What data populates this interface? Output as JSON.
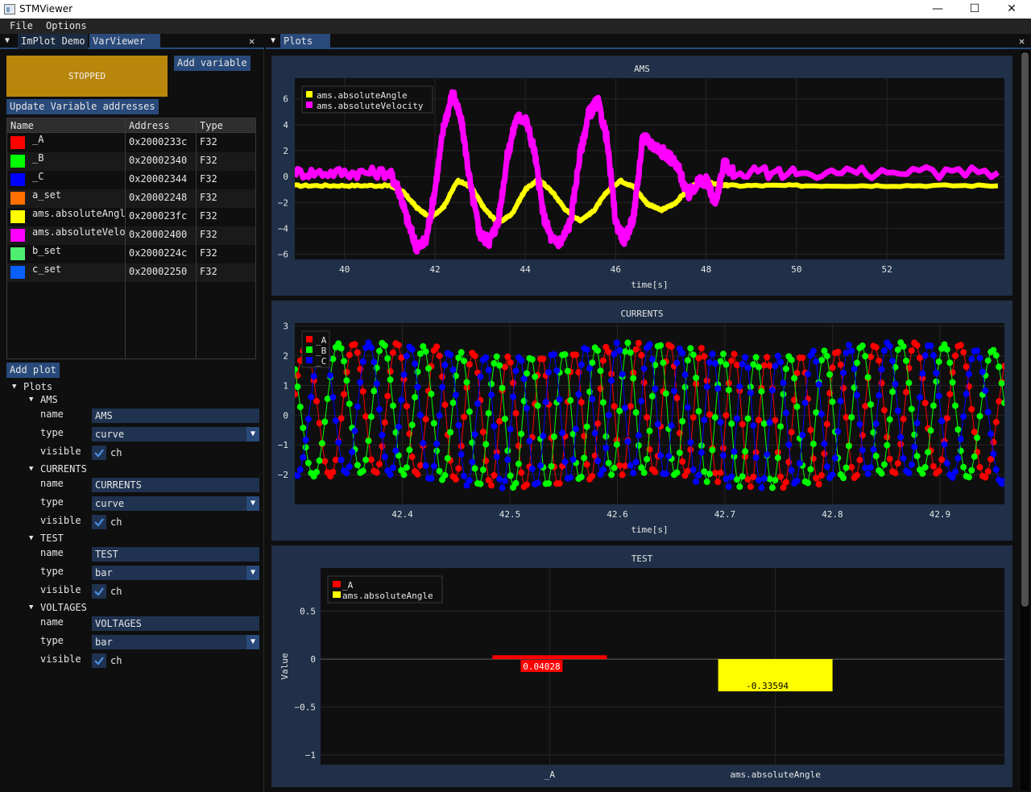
{
  "window": {
    "title": "STMViewer",
    "minimize": "—",
    "maximize": "☐",
    "close": "✕"
  },
  "menu": {
    "file": "File",
    "options": "Options"
  },
  "left_tabs": {
    "imPlotDemo": "ImPlot Demo",
    "varViewer": "VarViewer",
    "close": "✕",
    "collapse": "▼"
  },
  "controls": {
    "stopped": "STOPPED",
    "add_variable": "Add variable",
    "update_addresses": "Update Variable addresses",
    "add_plot": "Add plot"
  },
  "var_table": {
    "headers": {
      "name": "Name",
      "address": "Address",
      "type": "Type"
    },
    "rows": [
      {
        "name": "_A",
        "address": "0x2000233c",
        "type": "F32",
        "color": "#ff0000"
      },
      {
        "name": "_B",
        "address": "0x20002340",
        "type": "F32",
        "color": "#00ff00"
      },
      {
        "name": "_C",
        "address": "0x20002344",
        "type": "F32",
        "color": "#0000ff"
      },
      {
        "name": "a_set",
        "address": "0x20002248",
        "type": "F32",
        "color": "#ff7000"
      },
      {
        "name": "ams.absoluteAngle",
        "address": "0x200023fc",
        "type": "F32",
        "color": "#ffff00"
      },
      {
        "name": "ams.absoluteVelocity",
        "address": "0x20002400",
        "type": "F32",
        "color": "#ff00ff"
      },
      {
        "name": "b_set",
        "address": "0x2000224c",
        "type": "F32",
        "color": "#4fee70"
      },
      {
        "name": "c_set",
        "address": "0x20002250",
        "type": "F32",
        "color": "#0a5fff"
      }
    ]
  },
  "tree": {
    "root": "Plots",
    "field_labels": {
      "name": "name",
      "type": "type",
      "visible": "visible",
      "check_text": "ch"
    },
    "plots": [
      {
        "label": "AMS",
        "name": "AMS",
        "type": "curve",
        "visible": true
      },
      {
        "label": "CURRENTS",
        "name": "CURRENTS",
        "type": "curve",
        "visible": true
      },
      {
        "label": "TEST",
        "name": "TEST",
        "type": "bar",
        "visible": true
      },
      {
        "label": "VOLTAGES",
        "name": "VOLTAGES",
        "type": "bar",
        "visible": true
      }
    ]
  },
  "right_tab": {
    "label": "Plots",
    "collapse": "▼",
    "close": "✕"
  },
  "colors": {
    "accent": "#294a7a",
    "stopped": "#b8860b",
    "frame": "#1f3048",
    "plot_bg": "#0f0f0f"
  },
  "chart_data": [
    {
      "type": "line",
      "title": "AMS",
      "xlabel": "time[s]",
      "ylabel": "",
      "xlim": [
        38.9,
        54.6
      ],
      "ylim": [
        -6.4,
        7.6
      ],
      "xticks": [
        40,
        42,
        44,
        46,
        48,
        50,
        52
      ],
      "yticks": [
        -6,
        -4,
        -2,
        0,
        2,
        4,
        6
      ],
      "grid": true,
      "legend": "top-left",
      "series": [
        {
          "name": "ams.absoluteAngle",
          "color": "#ffff00",
          "x": [
            38.9,
            40.0,
            41.0,
            41.3,
            41.6,
            41.9,
            42.2,
            42.5,
            42.8,
            43.1,
            43.4,
            43.7,
            44.0,
            44.3,
            44.6,
            44.9,
            45.2,
            45.5,
            45.8,
            46.1,
            46.4,
            46.7,
            47.0,
            47.3,
            47.6,
            47.9,
            48.2,
            48.5,
            50.0,
            52.0,
            54.6
          ],
          "y": [
            -0.7,
            -0.7,
            -0.7,
            -1.2,
            -2.4,
            -3.2,
            -2.3,
            -0.3,
            -0.8,
            -2.5,
            -3.6,
            -2.9,
            -1.0,
            -0.2,
            -1.2,
            -2.6,
            -3.4,
            -2.7,
            -1.2,
            -0.3,
            -0.8,
            -2.1,
            -2.6,
            -2.1,
            -1.0,
            -0.3,
            -0.6,
            -0.7,
            -0.7,
            -0.7,
            -0.7
          ]
        },
        {
          "name": "ams.absoluteVelocity",
          "color": "#ff00ff",
          "x": [
            38.9,
            40.0,
            41.0,
            41.2,
            41.4,
            41.6,
            41.8,
            42.0,
            42.2,
            42.4,
            42.6,
            42.8,
            43.0,
            43.2,
            43.4,
            43.6,
            43.8,
            44.0,
            44.2,
            44.4,
            44.6,
            44.8,
            45.0,
            45.2,
            45.4,
            45.6,
            45.8,
            46.0,
            46.2,
            46.4,
            46.6,
            46.8,
            47.0,
            47.2,
            47.4,
            47.6,
            47.8,
            48.0,
            48.2,
            48.4,
            48.6,
            50.0,
            52.0,
            54.6
          ],
          "y": [
            0.3,
            0.3,
            0.3,
            -1.0,
            -3.5,
            -5.5,
            -5.0,
            -1.0,
            4.0,
            6.5,
            4.0,
            -1.0,
            -4.5,
            -5.0,
            -3.5,
            1.5,
            4.5,
            4.5,
            2.0,
            -3.0,
            -5.0,
            -5.0,
            -3.5,
            1.5,
            4.8,
            5.8,
            3.0,
            -3.5,
            -5.0,
            -3.0,
            3.0,
            2.5,
            2.0,
            1.5,
            0.5,
            -1.5,
            -0.5,
            -0.3,
            -2.0,
            1.0,
            0.3,
            0.3,
            0.3,
            0.3
          ]
        }
      ]
    },
    {
      "type": "line",
      "title": "CURRENTS",
      "xlabel": "time[s]",
      "ylabel": "",
      "xlim": [
        42.3,
        42.96
      ],
      "ylim": [
        -3.0,
        3.1
      ],
      "xticks": [
        42.4,
        42.5,
        42.6,
        42.7,
        42.8,
        42.9
      ],
      "yticks": [
        -2,
        -1,
        0,
        1,
        2,
        3
      ],
      "grid": true,
      "legend": "top-left",
      "series": [
        {
          "name": "_A",
          "color": "#ff0000",
          "amplitude": 2.2,
          "phase_deg": 0
        },
        {
          "name": "_B",
          "color": "#00ff00",
          "amplitude": 2.2,
          "phase_deg": 120
        },
        {
          "name": "_C",
          "color": "#0000ff",
          "amplitude": 2.2,
          "phase_deg": 240
        }
      ]
    },
    {
      "type": "bar",
      "title": "TEST",
      "xlabel": "",
      "ylabel": "Value",
      "ylim": [
        -1.1,
        0.95
      ],
      "yticks": [
        -1,
        -0.5,
        0,
        0.5
      ],
      "categories": [
        "_A",
        "ams.absoluteAngle"
      ],
      "grid": true,
      "legend": "top-left",
      "series": [
        {
          "name": "_A",
          "color": "#ff0000",
          "values": [
            0.04028,
            null
          ],
          "label": "0.04028"
        },
        {
          "name": "ams.absoluteAngle",
          "color": "#ffff00",
          "values": [
            null,
            -0.33594
          ],
          "label": "-0.33594"
        }
      ]
    }
  ]
}
